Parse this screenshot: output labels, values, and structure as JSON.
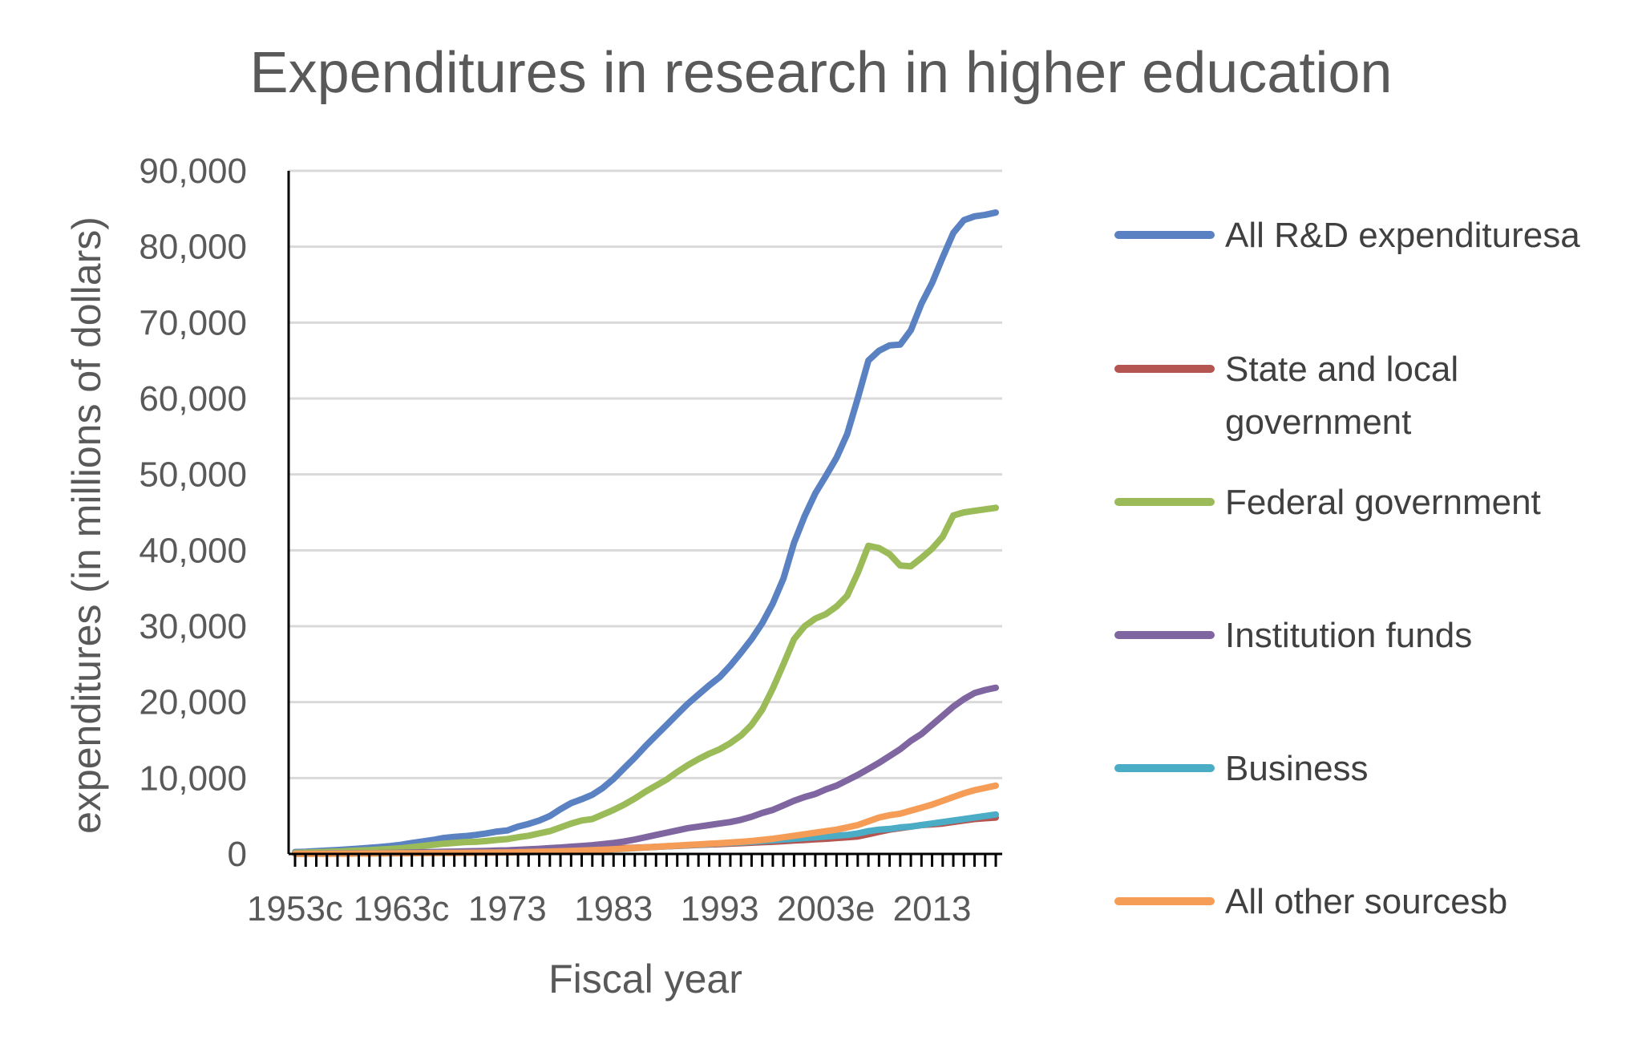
{
  "chart_data": {
    "type": "line",
    "title": "Expenditures in research in higher education",
    "xlabel": "Fiscal year",
    "ylabel": "expenditures (in millions of dollars)",
    "ylim": [
      0,
      90000
    ],
    "yticks": [
      0,
      10000,
      20000,
      30000,
      40000,
      50000,
      60000,
      70000,
      80000,
      90000
    ],
    "ytick_labels": [
      "0",
      "10,000",
      "20,000",
      "30,000",
      "40,000",
      "50,000",
      "60,000",
      "70,000",
      "80,000",
      "90,000"
    ],
    "x": [
      1953,
      1954,
      1955,
      1956,
      1957,
      1958,
      1959,
      1960,
      1961,
      1962,
      1963,
      1964,
      1965,
      1966,
      1967,
      1968,
      1969,
      1970,
      1971,
      1972,
      1973,
      1974,
      1975,
      1976,
      1977,
      1978,
      1979,
      1980,
      1981,
      1982,
      1983,
      1984,
      1985,
      1986,
      1987,
      1988,
      1989,
      1990,
      1991,
      1992,
      1993,
      1994,
      1995,
      1996,
      1997,
      1998,
      1999,
      2000,
      2001,
      2002,
      2003,
      2004,
      2005,
      2006,
      2007,
      2008,
      2009,
      2010,
      2011,
      2012,
      2013,
      2014,
      2015,
      2016,
      2017,
      2018,
      2019
    ],
    "xtick_labels": [
      {
        "year": 1953,
        "label": "1953c"
      },
      {
        "year": 1963,
        "label": "1963c"
      },
      {
        "year": 1973,
        "label": "1973"
      },
      {
        "year": 1983,
        "label": "1983"
      },
      {
        "year": 1993,
        "label": "1993"
      },
      {
        "year": 2003,
        "label": "2003e"
      },
      {
        "year": 2013,
        "label": "2013"
      }
    ],
    "series": [
      {
        "name": "All R&D expendituresa",
        "color": "#5A81C2",
        "values": [
          250,
          300,
          370,
          450,
          520,
          600,
          700,
          800,
          920,
          1050,
          1200,
          1450,
          1650,
          1850,
          2100,
          2250,
          2350,
          2500,
          2700,
          2950,
          3100,
          3600,
          3950,
          4400,
          5000,
          5900,
          6700,
          7200,
          7800,
          8700,
          9900,
          11300,
          12700,
          14200,
          15600,
          17000,
          18400,
          19800,
          21000,
          22200,
          23300,
          24800,
          26500,
          28300,
          30400,
          33000,
          36300,
          41000,
          44500,
          47500,
          49800,
          52200,
          55300,
          60000,
          65000,
          66300,
          67000,
          67100,
          69000,
          72500,
          75200,
          78600,
          81800,
          83500,
          84000,
          84200,
          84500
        ]
      },
      {
        "name": "State and local government",
        "color": "#B55552",
        "values": [
          30,
          40,
          50,
          60,
          70,
          80,
          90,
          100,
          110,
          120,
          130,
          140,
          150,
          170,
          190,
          210,
          230,
          250,
          270,
          290,
          310,
          340,
          370,
          400,
          440,
          480,
          520,
          560,
          600,
          650,
          700,
          760,
          820,
          880,
          940,
          1000,
          1060,
          1120,
          1180,
          1240,
          1300,
          1360,
          1420,
          1480,
          1540,
          1600,
          1680,
          1760,
          1840,
          1920,
          2000,
          2100,
          2200,
          2300,
          2600,
          2900,
          3200,
          3400,
          3600,
          3800,
          3900,
          4000,
          4200,
          4400,
          4600,
          4700,
          4800
        ]
      },
      {
        "name": "Federal government",
        "color": "#9BBB59",
        "values": [
          140,
          180,
          220,
          270,
          320,
          380,
          440,
          500,
          580,
          660,
          750,
          900,
          1050,
          1200,
          1350,
          1450,
          1550,
          1600,
          1700,
          1850,
          1950,
          2200,
          2400,
          2700,
          3000,
          3500,
          4000,
          4400,
          4600,
          5200,
          5800,
          6500,
          7300,
          8200,
          9000,
          9800,
          10800,
          11700,
          12500,
          13200,
          13800,
          14600,
          15600,
          17000,
          19000,
          21800,
          25000,
          28300,
          30000,
          31000,
          31600,
          32600,
          34000,
          37000,
          40600,
          40300,
          39500,
          38000,
          37900,
          39000,
          40200,
          41800,
          44600,
          45000,
          45200,
          45400,
          45600
        ]
      },
      {
        "name": "Institution funds",
        "color": "#8066A0",
        "values": [
          30,
          40,
          50,
          60,
          70,
          80,
          90,
          100,
          120,
          140,
          160,
          190,
          220,
          250,
          280,
          310,
          340,
          370,
          400,
          440,
          480,
          540,
          610,
          680,
          760,
          850,
          950,
          1050,
          1150,
          1300,
          1450,
          1650,
          1900,
          2200,
          2500,
          2800,
          3100,
          3400,
          3600,
          3800,
          4000,
          4200,
          4500,
          4900,
          5400,
          5800,
          6400,
          7000,
          7500,
          7900,
          8500,
          9000,
          9700,
          10400,
          11200,
          12000,
          12900,
          13800,
          14900,
          15800,
          17000,
          18200,
          19400,
          20400,
          21200,
          21600,
          21900
        ]
      },
      {
        "name": "Business",
        "color": "#4BACC6",
        "values": [
          20,
          25,
          30,
          35,
          40,
          45,
          50,
          60,
          70,
          80,
          90,
          100,
          110,
          120,
          130,
          140,
          150,
          160,
          170,
          180,
          200,
          220,
          240,
          260,
          290,
          320,
          360,
          400,
          450,
          520,
          600,
          680,
          760,
          840,
          920,
          1000,
          1080,
          1150,
          1220,
          1300,
          1380,
          1450,
          1520,
          1600,
          1700,
          1800,
          1900,
          2000,
          2100,
          2200,
          2300,
          2400,
          2500,
          2700,
          3000,
          3200,
          3300,
          3500,
          3600,
          3800,
          4000,
          4200,
          4400,
          4600,
          4800,
          5000,
          5200
        ]
      },
      {
        "name": "All other sourcesb",
        "color": "#F59D56",
        "values": [
          20,
          25,
          30,
          35,
          40,
          45,
          50,
          60,
          70,
          80,
          90,
          100,
          110,
          120,
          130,
          140,
          150,
          160,
          170,
          180,
          200,
          220,
          250,
          280,
          320,
          360,
          400,
          450,
          500,
          560,
          620,
          700,
          780,
          860,
          940,
          1020,
          1100,
          1180,
          1260,
          1340,
          1420,
          1500,
          1600,
          1700,
          1850,
          2000,
          2200,
          2400,
          2600,
          2800,
          3000,
          3200,
          3500,
          3800,
          4300,
          4800,
          5100,
          5300,
          5700,
          6100,
          6500,
          7000,
          7500,
          8000,
          8400,
          8700,
          9000
        ]
      }
    ],
    "legend_position": "right",
    "grid": true
  }
}
